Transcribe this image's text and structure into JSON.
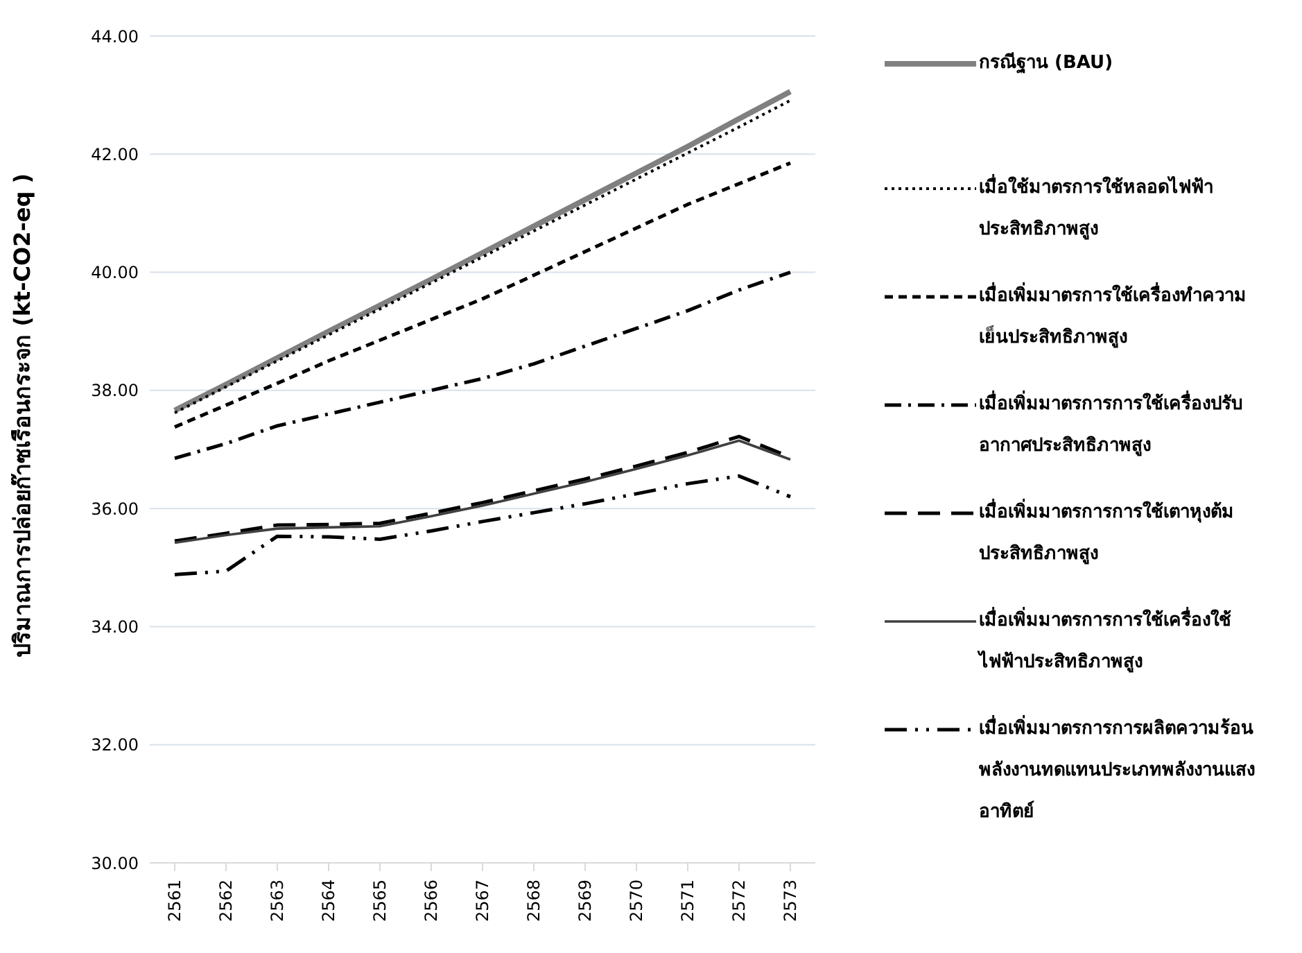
{
  "chart_data": {
    "type": "line",
    "ylabel": "ปริมาณการปล่อยก๊าซเรือนกระจก (kt-CO2-eq )",
    "categories": [
      "2561",
      "2562",
      "2563",
      "2564",
      "2565",
      "2566",
      "2567",
      "2568",
      "2569",
      "2570",
      "2571",
      "2572",
      "2573"
    ],
    "ylim": [
      30,
      44
    ],
    "yticks": [
      {
        "value": 30,
        "label": "30.00"
      },
      {
        "value": 32,
        "label": "32.00"
      },
      {
        "value": 34,
        "label": "34.00"
      },
      {
        "value": 36,
        "label": "36.00"
      },
      {
        "value": 38,
        "label": "38.00"
      },
      {
        "value": 40,
        "label": "40.00"
      },
      {
        "value": 42,
        "label": "42.00"
      },
      {
        "value": 44,
        "label": "44.00"
      }
    ],
    "grid": "y",
    "legend": "right",
    "marker": "none",
    "series": [
      {
        "name": "กรณีฐาน (BAU)",
        "color": "#808080",
        "line_style": "solid",
        "values": [
          37.66,
          38.1,
          38.55,
          39.0,
          39.44,
          39.88,
          40.33,
          40.78,
          41.23,
          41.68,
          42.13,
          42.6,
          43.06
        ]
      },
      {
        "name": "เมื่อใช้มาตรการใช้หลอดไฟฟ้าประสิทธิภาพสูง",
        "color": "#000000",
        "line_style": "dotted",
        "values": [
          37.62,
          38.06,
          38.5,
          38.94,
          39.38,
          39.82,
          40.26,
          40.7,
          41.14,
          41.58,
          42.02,
          42.46,
          42.91
        ]
      },
      {
        "name": "เมื่อเพิ่มมาตรการใช้เครื่องทำความเย็นประสิทธิภาพสูง",
        "color": "#000000",
        "line_style": "dashed",
        "values": [
          37.38,
          37.75,
          38.12,
          38.5,
          38.85,
          39.2,
          39.55,
          39.95,
          40.35,
          40.75,
          41.15,
          41.5,
          41.85
        ]
      },
      {
        "name": "เมื่อเพิ่มมาตรการการใช้เครื่องปรับอากาศประสิทธิภาพสูง",
        "color": "#000000",
        "line_style": "dashed",
        "values": [
          36.85,
          37.1,
          37.4,
          37.6,
          37.8,
          38.0,
          38.2,
          38.45,
          38.75,
          39.05,
          39.35,
          39.7,
          40.0
        ]
      },
      {
        "name": "เมื่อเพิ่มมาตรการการใช้เตาหุงต้มประสิทธิภาพสูง",
        "color": "#000000",
        "line_style": "dashed",
        "values": [
          35.45,
          35.58,
          35.72,
          35.73,
          35.75,
          35.92,
          36.1,
          36.3,
          36.5,
          36.72,
          36.95,
          37.22,
          36.87
        ]
      },
      {
        "name": "เมื่อเพิ่มมาตรการการใช้เครื่องใช้ไฟฟ้าประสิทธิภาพสูง",
        "color": "#404040",
        "line_style": "solid",
        "values": [
          35.42,
          35.55,
          35.66,
          35.68,
          35.7,
          35.87,
          36.05,
          36.25,
          36.45,
          36.67,
          36.9,
          37.15,
          36.83
        ]
      },
      {
        "name": "เมื่อเพิ่มมาตรการการผลิตความร้อนพลังงานทดแทนประเภทพลังงานแสงอาทิตย์",
        "color": "#000000",
        "line_style": "dashed",
        "values": [
          34.88,
          34.94,
          35.53,
          35.52,
          35.48,
          35.62,
          35.78,
          35.93,
          36.08,
          36.25,
          36.42,
          36.55,
          36.2
        ]
      }
    ]
  }
}
